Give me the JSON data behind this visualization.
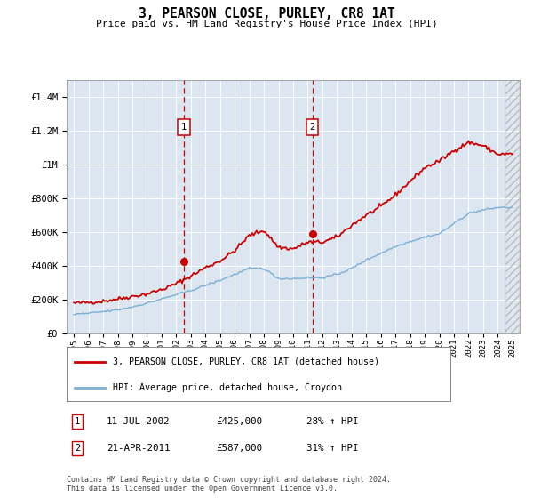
{
  "title": "3, PEARSON CLOSE, PURLEY, CR8 1AT",
  "subtitle": "Price paid vs. HM Land Registry's House Price Index (HPI)",
  "legend_line1": "3, PEARSON CLOSE, PURLEY, CR8 1AT (detached house)",
  "legend_line2": "HPI: Average price, detached house, Croydon",
  "footnote": "Contains HM Land Registry data © Crown copyright and database right 2024.\nThis data is licensed under the Open Government Licence v3.0.",
  "table": [
    {
      "num": "1",
      "date": "11-JUL-2002",
      "price": "£425,000",
      "hpi": "28% ↑ HPI"
    },
    {
      "num": "2",
      "date": "21-APR-2011",
      "price": "£587,000",
      "hpi": "31% ↑ HPI"
    }
  ],
  "marker1_x": 2002.53,
  "marker1_y": 425000,
  "marker2_x": 2011.31,
  "marker2_y": 587000,
  "red_color": "#cc0000",
  "blue_color": "#7bafd4",
  "background_color": "#dce6f1",
  "ylim": [
    0,
    1500000
  ],
  "xlim": [
    1994.5,
    2025.5
  ],
  "yticks": [
    0,
    200000,
    400000,
    600000,
    800000,
    1000000,
    1200000,
    1400000
  ],
  "xticks": [
    1995,
    1996,
    1997,
    1998,
    1999,
    2000,
    2001,
    2002,
    2003,
    2004,
    2005,
    2006,
    2007,
    2008,
    2009,
    2010,
    2011,
    2012,
    2013,
    2014,
    2015,
    2016,
    2017,
    2018,
    2019,
    2020,
    2021,
    2022,
    2023,
    2024,
    2025
  ],
  "red_key_years": [
    1995,
    1996,
    1997,
    1998,
    1999,
    2000,
    2001,
    2002,
    2003,
    2004,
    2005,
    2006,
    2007,
    2008,
    2009,
    2010,
    2011,
    2012,
    2013,
    2014,
    2015,
    2016,
    2017,
    2018,
    2019,
    2020,
    2021,
    2022,
    2023,
    2024,
    2025
  ],
  "red_key_vals": [
    180000,
    185000,
    192000,
    205000,
    220000,
    235000,
    260000,
    295000,
    340000,
    390000,
    430000,
    490000,
    580000,
    610000,
    510000,
    500000,
    540000,
    540000,
    570000,
    640000,
    700000,
    750000,
    820000,
    900000,
    980000,
    1020000,
    1080000,
    1130000,
    1110000,
    1060000,
    1060000
  ],
  "blue_key_years": [
    1995,
    1996,
    1997,
    1998,
    1999,
    2000,
    2001,
    2002,
    2003,
    2004,
    2005,
    2006,
    2007,
    2008,
    2009,
    2010,
    2011,
    2012,
    2013,
    2014,
    2015,
    2016,
    2017,
    2018,
    2019,
    2020,
    2021,
    2022,
    2023,
    2024,
    2025
  ],
  "blue_key_vals": [
    115000,
    120000,
    130000,
    140000,
    158000,
    180000,
    205000,
    230000,
    255000,
    285000,
    315000,
    350000,
    385000,
    385000,
    325000,
    325000,
    330000,
    330000,
    350000,
    385000,
    435000,
    475000,
    515000,
    545000,
    570000,
    590000,
    650000,
    710000,
    730000,
    745000,
    745000
  ]
}
